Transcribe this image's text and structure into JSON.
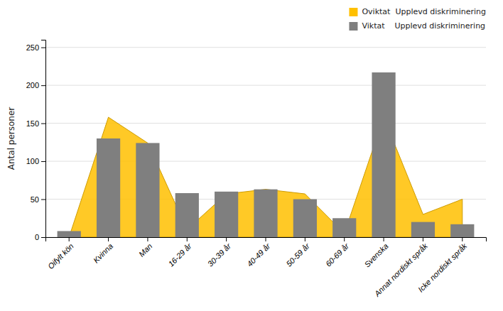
{
  "chart_data": {
    "type": "bar",
    "y_label": "Antal personer",
    "categories": [
      "Oifylt kön",
      "Kvinna",
      "Man",
      "16-29 år",
      "30-39 år",
      "40-49 år",
      "50-59 år",
      "60-69 år",
      "Svenska",
      "Annat nordiskt språk",
      "Icke nordiskt språk"
    ],
    "series": [
      {
        "name": "Oviktat  Upplevd diskriminering",
        "type": "area",
        "color": "#FFC000",
        "values": [
          0,
          158,
          124,
          10,
          57,
          63,
          57,
          5,
          158,
          30,
          50
        ]
      },
      {
        "name": "Viktat    Upplevd diskriminering",
        "type": "bar",
        "color": "#7f7f7f",
        "values": [
          8,
          130,
          124,
          58,
          60,
          63,
          50,
          25,
          217,
          20,
          17
        ]
      }
    ],
    "ylim": [
      0,
      260
    ],
    "yticks": [
      0,
      50,
      100,
      150,
      200,
      250
    ],
    "grid": true,
    "legend": "upper right"
  }
}
